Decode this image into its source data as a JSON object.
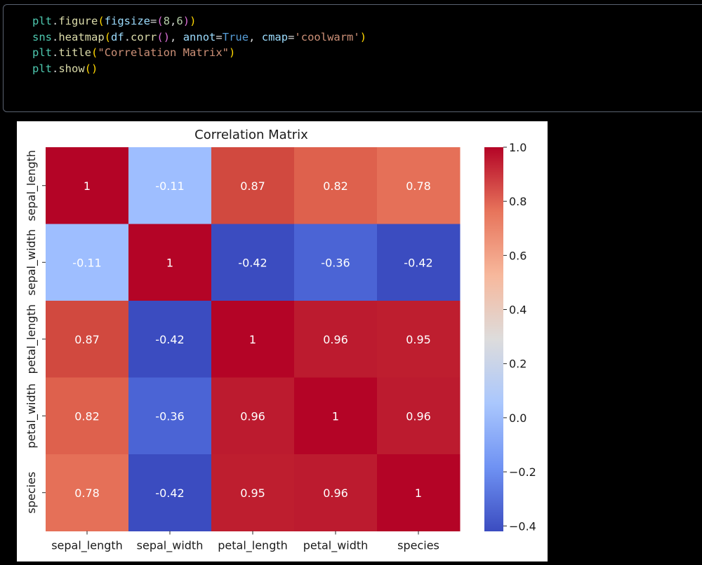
{
  "code_cell": {
    "lines": [
      "plt.figure(figsize=(8,6))",
      "sns.heatmap(df.corr(), annot=True, cmap='coolwarm')",
      "plt.title(\"Correlation Matrix\")",
      "plt.show()"
    ]
  },
  "colors": {
    "page_background": "#000000",
    "cell_border": "#5a6270",
    "code_plt": "#4ec9b0",
    "code_call": "#dcdcaa",
    "code_string": "#ce9178",
    "code_keyword_arg": "#9cdcfe",
    "code_true": "#569cd6",
    "code_number": "#b5cea8",
    "code_paren_1": "#ffd700",
    "code_paren_2": "#da70d6"
  },
  "chart_data": {
    "type": "heatmap",
    "title": "Correlation Matrix",
    "x_labels": [
      "sepal_length",
      "sepal_width",
      "petal_length",
      "petal_width",
      "species"
    ],
    "y_labels": [
      "sepal_length",
      "sepal_width",
      "petal_length",
      "petal_width",
      "species"
    ],
    "values": [
      [
        1,
        -0.11,
        0.87,
        0.82,
        0.78
      ],
      [
        -0.11,
        1,
        -0.42,
        -0.36,
        -0.42
      ],
      [
        0.87,
        -0.42,
        1,
        0.96,
        0.95
      ],
      [
        0.82,
        -0.36,
        0.96,
        1,
        0.96
      ],
      [
        0.78,
        -0.42,
        0.95,
        0.96,
        1
      ]
    ],
    "annotations": [
      [
        "1",
        "-0.11",
        "0.87",
        "0.82",
        "0.78"
      ],
      [
        "-0.11",
        "1",
        "-0.42",
        "-0.36",
        "-0.42"
      ],
      [
        "0.87",
        "-0.42",
        "1",
        "0.96",
        "0.95"
      ],
      [
        "0.82",
        "-0.36",
        "0.96",
        "1",
        "0.96"
      ],
      [
        "0.78",
        "-0.42",
        "0.95",
        "0.96",
        "1"
      ]
    ],
    "colormap": "coolwarm",
    "vmin": -0.42,
    "vmax": 1.0,
    "colorbar_ticks": [
      1.0,
      0.8,
      0.6,
      0.4,
      0.2,
      0.0,
      -0.2,
      -0.4
    ],
    "colorbar_tick_labels": [
      "1.0",
      "0.8",
      "0.6",
      "0.4",
      "0.2",
      "0.0",
      "−0.2",
      "−0.4"
    ],
    "cell_colors": [
      [
        "#b40426",
        "#9ebeff",
        "#d1493f",
        "#de614d",
        "#e57058"
      ],
      [
        "#9ebeff",
        "#b40426",
        "#3b4cc0",
        "#4b64d5",
        "#3b4cc0"
      ],
      [
        "#d1493f",
        "#3b4cc0",
        "#b40426",
        "#bc1b2f",
        "#be1e2f"
      ],
      [
        "#de614d",
        "#4b64d5",
        "#bc1b2f",
        "#b40426",
        "#bc1b2f"
      ],
      [
        "#e57058",
        "#3b4cc0",
        "#be1e2f",
        "#bc1b2f",
        "#b40426"
      ]
    ],
    "colorbar_stops": [
      "#3b4cc0",
      "#6f92f3",
      "#aac7fd",
      "#dddcdc",
      "#f7b89c",
      "#e7745b",
      "#b40426"
    ]
  }
}
